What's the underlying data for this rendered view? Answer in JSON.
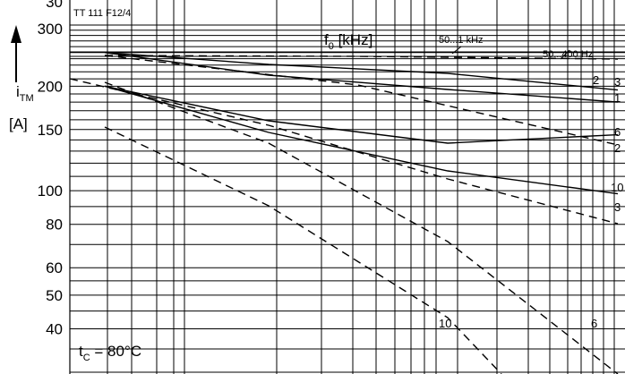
{
  "chart_data": {
    "type": "line",
    "title": "TT 111 F12/4",
    "ylabel_symbol": "i",
    "ylabel_sub": "TM",
    "ylabel_unit": "[A]",
    "param_label": "f",
    "param_sub": "0",
    "param_unit": "[kHz]",
    "condition_text": "t",
    "condition_sub": "C",
    "condition_value": " = 80°C",
    "y_scale": "log",
    "ylim": [
      30,
      300
    ],
    "ytick_labels": [
      "300",
      "200",
      "150",
      "100",
      "80",
      "60",
      "50",
      "40",
      "30"
    ],
    "grid": true,
    "annotations": [
      {
        "id": "a50_1",
        "text": "50...1 kHz"
      },
      {
        "id": "a50_400",
        "text": "50...400 Hz"
      },
      {
        "id": "lab_s3",
        "text": "3"
      },
      {
        "id": "lab_s1",
        "text": "1"
      },
      {
        "id": "lab_s2",
        "text": "2"
      },
      {
        "id": "lab_s6",
        "text": "6"
      },
      {
        "id": "lab_s10",
        "text": "10"
      },
      {
        "id": "lab_d2",
        "text": "2"
      },
      {
        "id": "lab_d3",
        "text": "3"
      },
      {
        "id": "lab_d6",
        "text": "6"
      },
      {
        "id": "lab_d10",
        "text": "10"
      }
    ],
    "series": [
      {
        "name": "1",
        "style": "solid",
        "y_start": 250,
        "y_end": 195
      },
      {
        "name": "3",
        "style": "solid",
        "y_start": 250,
        "y_end": 180
      },
      {
        "name": "6",
        "style": "solid",
        "y_start": 200,
        "y_end": 145
      },
      {
        "name": "10",
        "style": "solid",
        "y_start": 200,
        "y_end": 98
      },
      {
        "name": "50...400 Hz",
        "style": "dashed",
        "y_start": 250,
        "y_end": 240
      },
      {
        "name": "2",
        "style": "dashed",
        "y_start": 250,
        "y_end": 140
      },
      {
        "name": "3",
        "style": "dashed",
        "y_start": 210,
        "y_end": 90
      },
      {
        "name": "6",
        "style": "dashed",
        "y_start": 200,
        "y_end": 30
      },
      {
        "name": "10",
        "style": "dashed",
        "y_start": 150,
        "y_end": 30
      }
    ]
  }
}
